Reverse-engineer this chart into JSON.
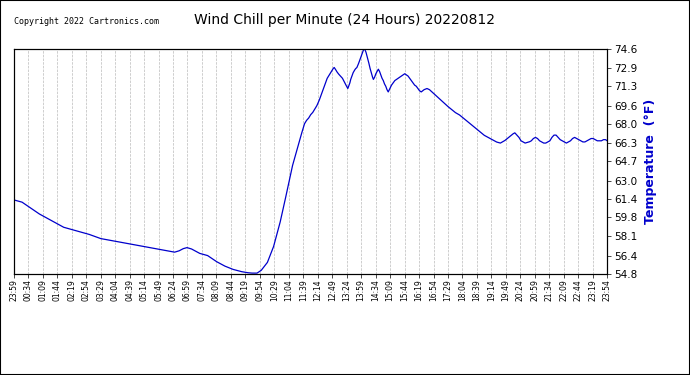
{
  "title": "Wind Chill per Minute (24 Hours) 20220812",
  "copyright": "Copyright 2022 Cartronics.com",
  "ylabel": "Temperature  (°F)",
  "line_color": "#0000cc",
  "ylabel_color": "#0000cc",
  "background_color": "#ffffff",
  "grid_color": "#bbbbbb",
  "ylim": [
    54.8,
    74.6
  ],
  "yticks": [
    54.8,
    56.4,
    58.1,
    59.8,
    61.4,
    63.0,
    64.7,
    66.3,
    68.0,
    69.6,
    71.3,
    72.9,
    74.6
  ],
  "x_labels": [
    "23:59",
    "00:34",
    "01:09",
    "01:44",
    "02:19",
    "02:54",
    "03:29",
    "04:04",
    "04:39",
    "05:14",
    "05:49",
    "06:24",
    "06:59",
    "07:34",
    "08:09",
    "08:44",
    "09:19",
    "09:54",
    "10:29",
    "11:04",
    "11:39",
    "12:14",
    "12:49",
    "13:24",
    "13:59",
    "14:34",
    "15:09",
    "15:44",
    "16:19",
    "16:54",
    "17:29",
    "18:04",
    "18:39",
    "19:14",
    "19:49",
    "20:24",
    "20:59",
    "21:34",
    "22:09",
    "22:44",
    "23:19",
    "23:54"
  ],
  "key_points": [
    [
      0,
      61.3
    ],
    [
      20,
      61.1
    ],
    [
      40,
      60.6
    ],
    [
      60,
      60.1
    ],
    [
      80,
      59.7
    ],
    [
      100,
      59.3
    ],
    [
      120,
      58.9
    ],
    [
      150,
      58.6
    ],
    [
      180,
      58.3
    ],
    [
      210,
      57.9
    ],
    [
      240,
      57.7
    ],
    [
      270,
      57.5
    ],
    [
      300,
      57.3
    ],
    [
      330,
      57.1
    ],
    [
      360,
      56.9
    ],
    [
      390,
      56.7
    ],
    [
      400,
      56.8
    ],
    [
      410,
      57.0
    ],
    [
      420,
      57.1
    ],
    [
      430,
      57.0
    ],
    [
      440,
      56.8
    ],
    [
      450,
      56.6
    ],
    [
      470,
      56.4
    ],
    [
      490,
      55.9
    ],
    [
      510,
      55.5
    ],
    [
      530,
      55.2
    ],
    [
      550,
      55.0
    ],
    [
      565,
      54.9
    ],
    [
      575,
      54.86
    ],
    [
      585,
      54.85
    ],
    [
      590,
      54.86
    ],
    [
      600,
      55.1
    ],
    [
      615,
      55.8
    ],
    [
      630,
      57.2
    ],
    [
      645,
      59.2
    ],
    [
      655,
      60.8
    ],
    [
      665,
      62.5
    ],
    [
      675,
      64.2
    ],
    [
      685,
      65.5
    ],
    [
      695,
      66.8
    ],
    [
      705,
      68.0
    ],
    [
      710,
      68.3
    ],
    [
      715,
      68.5
    ],
    [
      720,
      68.8
    ],
    [
      725,
      69.0
    ],
    [
      730,
      69.3
    ],
    [
      735,
      69.6
    ],
    [
      740,
      70.0
    ],
    [
      745,
      70.5
    ],
    [
      750,
      71.0
    ],
    [
      755,
      71.5
    ],
    [
      760,
      72.0
    ],
    [
      765,
      72.3
    ],
    [
      770,
      72.6
    ],
    [
      774,
      72.85
    ],
    [
      777,
      72.95
    ],
    [
      779,
      72.85
    ],
    [
      783,
      72.6
    ],
    [
      787,
      72.4
    ],
    [
      792,
      72.2
    ],
    [
      797,
      72.0
    ],
    [
      800,
      71.8
    ],
    [
      804,
      71.5
    ],
    [
      807,
      71.3
    ],
    [
      810,
      71.1
    ],
    [
      812,
      71.3
    ],
    [
      815,
      71.6
    ],
    [
      817,
      71.9
    ],
    [
      820,
      72.2
    ],
    [
      823,
      72.5
    ],
    [
      826,
      72.7
    ],
    [
      829,
      72.85
    ],
    [
      832,
      72.95
    ],
    [
      835,
      73.2
    ],
    [
      838,
      73.5
    ],
    [
      841,
      73.8
    ],
    [
      844,
      74.1
    ],
    [
      847,
      74.4
    ],
    [
      849,
      74.6
    ],
    [
      851,
      74.55
    ],
    [
      854,
      74.3
    ],
    [
      857,
      73.9
    ],
    [
      860,
      73.5
    ],
    [
      863,
      73.0
    ],
    [
      866,
      72.6
    ],
    [
      869,
      72.2
    ],
    [
      872,
      71.9
    ],
    [
      875,
      72.1
    ],
    [
      878,
      72.4
    ],
    [
      881,
      72.6
    ],
    [
      884,
      72.8
    ],
    [
      887,
      72.6
    ],
    [
      890,
      72.3
    ],
    [
      893,
      72.0
    ],
    [
      896,
      71.8
    ],
    [
      899,
      71.5
    ],
    [
      902,
      71.3
    ],
    [
      905,
      71.0
    ],
    [
      908,
      70.8
    ],
    [
      912,
      71.1
    ],
    [
      916,
      71.4
    ],
    [
      920,
      71.6
    ],
    [
      924,
      71.8
    ],
    [
      928,
      71.9
    ],
    [
      932,
      72.0
    ],
    [
      936,
      72.1
    ],
    [
      940,
      72.2
    ],
    [
      944,
      72.3
    ],
    [
      948,
      72.4
    ],
    [
      952,
      72.3
    ],
    [
      956,
      72.2
    ],
    [
      960,
      72.0
    ],
    [
      964,
      71.8
    ],
    [
      968,
      71.6
    ],
    [
      972,
      71.4
    ],
    [
      976,
      71.3
    ],
    [
      980,
      71.1
    ],
    [
      984,
      70.9
    ],
    [
      988,
      70.8
    ],
    [
      995,
      71.0
    ],
    [
      1002,
      71.1
    ],
    [
      1008,
      71.0
    ],
    [
      1014,
      70.8
    ],
    [
      1020,
      70.6
    ],
    [
      1026,
      70.4
    ],
    [
      1032,
      70.2
    ],
    [
      1038,
      70.0
    ],
    [
      1044,
      69.8
    ],
    [
      1050,
      69.6
    ],
    [
      1060,
      69.3
    ],
    [
      1070,
      69.0
    ],
    [
      1080,
      68.8
    ],
    [
      1090,
      68.5
    ],
    [
      1100,
      68.2
    ],
    [
      1110,
      67.9
    ],
    [
      1120,
      67.6
    ],
    [
      1130,
      67.3
    ],
    [
      1140,
      67.0
    ],
    [
      1150,
      66.8
    ],
    [
      1160,
      66.6
    ],
    [
      1170,
      66.4
    ],
    [
      1180,
      66.3
    ],
    [
      1190,
      66.5
    ],
    [
      1200,
      66.8
    ],
    [
      1210,
      67.1
    ],
    [
      1215,
      67.2
    ],
    [
      1220,
      67.0
    ],
    [
      1225,
      66.8
    ],
    [
      1230,
      66.5
    ],
    [
      1235,
      66.4
    ],
    [
      1240,
      66.3
    ],
    [
      1250,
      66.4
    ],
    [
      1255,
      66.5
    ],
    [
      1260,
      66.7
    ],
    [
      1265,
      66.8
    ],
    [
      1270,
      66.7
    ],
    [
      1275,
      66.5
    ],
    [
      1280,
      66.4
    ],
    [
      1285,
      66.3
    ],
    [
      1290,
      66.3
    ],
    [
      1295,
      66.4
    ],
    [
      1300,
      66.5
    ],
    [
      1305,
      66.8
    ],
    [
      1310,
      67.0
    ],
    [
      1315,
      67.0
    ],
    [
      1320,
      66.8
    ],
    [
      1325,
      66.6
    ],
    [
      1330,
      66.5
    ],
    [
      1335,
      66.4
    ],
    [
      1340,
      66.3
    ],
    [
      1345,
      66.4
    ],
    [
      1350,
      66.5
    ],
    [
      1355,
      66.7
    ],
    [
      1360,
      66.8
    ],
    [
      1365,
      66.7
    ],
    [
      1370,
      66.6
    ],
    [
      1375,
      66.5
    ],
    [
      1380,
      66.4
    ],
    [
      1385,
      66.4
    ],
    [
      1390,
      66.5
    ],
    [
      1395,
      66.6
    ],
    [
      1400,
      66.7
    ],
    [
      1405,
      66.7
    ],
    [
      1410,
      66.6
    ],
    [
      1415,
      66.5
    ],
    [
      1420,
      66.5
    ],
    [
      1425,
      66.5
    ],
    [
      1430,
      66.6
    ],
    [
      1435,
      66.6
    ],
    [
      1439,
      66.5
    ]
  ]
}
